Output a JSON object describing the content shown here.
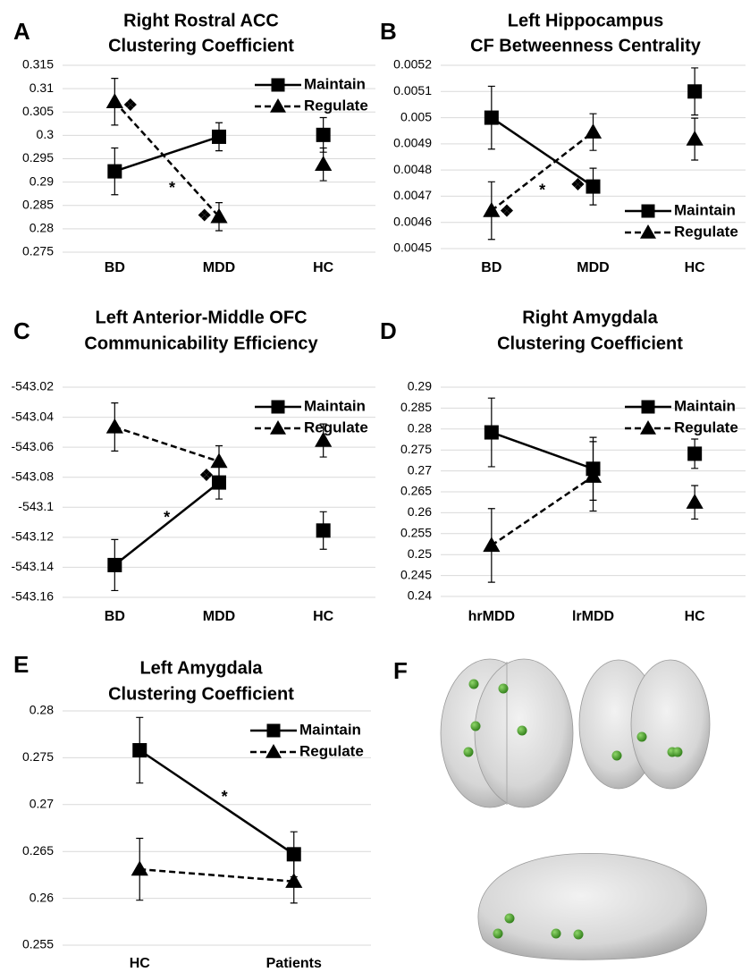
{
  "chart_data": [
    {
      "type": "line",
      "label": "A",
      "title": [
        "Right Rostral ACC",
        "Clustering Coefficient"
      ],
      "categories": [
        "BD",
        "MDD",
        "HC"
      ],
      "joined": 2,
      "legend": "upper right",
      "ylim": [
        0.275,
        0.315
      ],
      "yticks": [
        0.275,
        0.28,
        0.285,
        0.29,
        0.295,
        0.3,
        0.305,
        0.31,
        0.315
      ],
      "series": [
        {
          "name": "Maintain",
          "color": "#000000",
          "marker": "square",
          "dashed": false,
          "values": [
            0.2923,
            0.2997,
            0.3001
          ],
          "errors": [
            0.005,
            0.003,
            0.0037
          ]
        },
        {
          "name": "Regulate",
          "color": "#000000",
          "marker": "triangle",
          "dashed": true,
          "values": [
            0.3072,
            0.2826,
            0.2938
          ],
          "errors": [
            0.005,
            0.003,
            0.0035
          ]
        }
      ],
      "annotations": [
        {
          "text": "❖",
          "x": 0.15,
          "y": 0.3062
        },
        {
          "text": "*",
          "x": 0.55,
          "y": 0.2885
        },
        {
          "text": "❖",
          "x": 0.86,
          "y": 0.2826
        }
      ]
    },
    {
      "type": "line",
      "label": "B",
      "title": [
        "Left Hippocampus",
        "CF Betweenness Centrality"
      ],
      "categories": [
        "BD",
        "MDD",
        "HC"
      ],
      "joined": 2,
      "legend": "lower right",
      "ylim": [
        0.0045,
        0.0052
      ],
      "yticks": [
        0.0045,
        0.0046,
        0.0047,
        0.0048,
        0.0049,
        0.005,
        0.0051,
        0.0052
      ],
      "series": [
        {
          "name": "Maintain",
          "color": "#000000",
          "marker": "square",
          "dashed": false,
          "values": [
            0.005,
            0.004737,
            0.0051
          ],
          "errors": [
            0.00012,
            7e-05,
            9e-05
          ]
        },
        {
          "name": "Regulate",
          "color": "#000000",
          "marker": "triangle",
          "dashed": true,
          "values": [
            0.004645,
            0.004945,
            0.004918
          ],
          "errors": [
            0.00011,
            7e-05,
            8e-05
          ]
        }
      ],
      "annotations": [
        {
          "text": "❖",
          "x": 0.15,
          "y": 0.00464
        },
        {
          "text": "*",
          "x": 0.5,
          "y": 0.00472
        },
        {
          "text": "❖",
          "x": 0.85,
          "y": 0.00474
        }
      ]
    },
    {
      "type": "line",
      "label": "C",
      "title": [
        "Left Anterior-Middle OFC",
        "Communicability Efficiency"
      ],
      "categories": [
        "BD",
        "MDD",
        "HC"
      ],
      "joined": 2,
      "legend": "upper right",
      "ylim": [
        -543.16,
        -543.02
      ],
      "yticks": [
        -543.16,
        -543.14,
        -543.12,
        -543.1,
        -543.08,
        -543.06,
        -543.04,
        -543.02
      ],
      "series": [
        {
          "name": "Maintain",
          "color": "#000000",
          "marker": "square",
          "dashed": false,
          "values": [
            -543.1385,
            -543.0835,
            -543.1155
          ],
          "errors": [
            0.017,
            0.011,
            0.0125
          ]
        },
        {
          "name": "Regulate",
          "color": "#000000",
          "marker": "triangle",
          "dashed": true,
          "values": [
            -543.0465,
            -543.0695,
            -543.0555
          ],
          "errors": [
            0.016,
            0.0105,
            0.011
          ]
        }
      ],
      "annotations": [
        {
          "text": "*",
          "x": 0.5,
          "y": -543.1075
        },
        {
          "text": "❖",
          "x": 0.88,
          "y": -543.0795
        }
      ]
    },
    {
      "type": "line",
      "label": "D",
      "title": [
        "Right Amygdala",
        "Clustering Coefficient"
      ],
      "categories": [
        "hrMDD",
        "lrMDD",
        "HC"
      ],
      "joined": 2,
      "legend": "upper right",
      "ylim": [
        0.24,
        0.29
      ],
      "yticks": [
        0.24,
        0.245,
        0.25,
        0.255,
        0.26,
        0.265,
        0.27,
        0.275,
        0.28,
        0.285,
        0.29
      ],
      "series": [
        {
          "name": "Maintain",
          "color": "#000000",
          "marker": "square",
          "dashed": false,
          "values": [
            0.2792,
            0.2705,
            0.2741
          ],
          "errors": [
            0.0082,
            0.0075,
            0.0035
          ]
        },
        {
          "name": "Regulate",
          "color": "#000000",
          "marker": "triangle",
          "dashed": true,
          "values": [
            0.2522,
            0.2687,
            0.2625
          ],
          "errors": [
            0.0088,
            0.0083,
            0.004
          ]
        }
      ],
      "annotations": []
    },
    {
      "type": "line",
      "label": "E",
      "title": [
        "Left Amygdala",
        "Clustering Coefficient"
      ],
      "categories": [
        "HC",
        "Patients"
      ],
      "joined": 2,
      "legend": "upper right",
      "ylim": [
        0.255,
        0.28
      ],
      "yticks": [
        0.255,
        0.26,
        0.265,
        0.27,
        0.275,
        0.28
      ],
      "series": [
        {
          "name": "Maintain",
          "color": "#000000",
          "marker": "square",
          "dashed": false,
          "values": [
            0.2758,
            0.2647
          ],
          "errors": [
            0.0035,
            0.0024
          ]
        },
        {
          "name": "Regulate",
          "color": "#000000",
          "marker": "triangle",
          "dashed": true,
          "values": [
            0.2631,
            0.2618
          ],
          "errors": [
            0.0033,
            0.0023
          ]
        }
      ],
      "annotations": [
        {
          "text": "*",
          "x": 0.55,
          "y": 0.2707
        }
      ]
    }
  ],
  "brain_panel": {
    "label": "F"
  }
}
